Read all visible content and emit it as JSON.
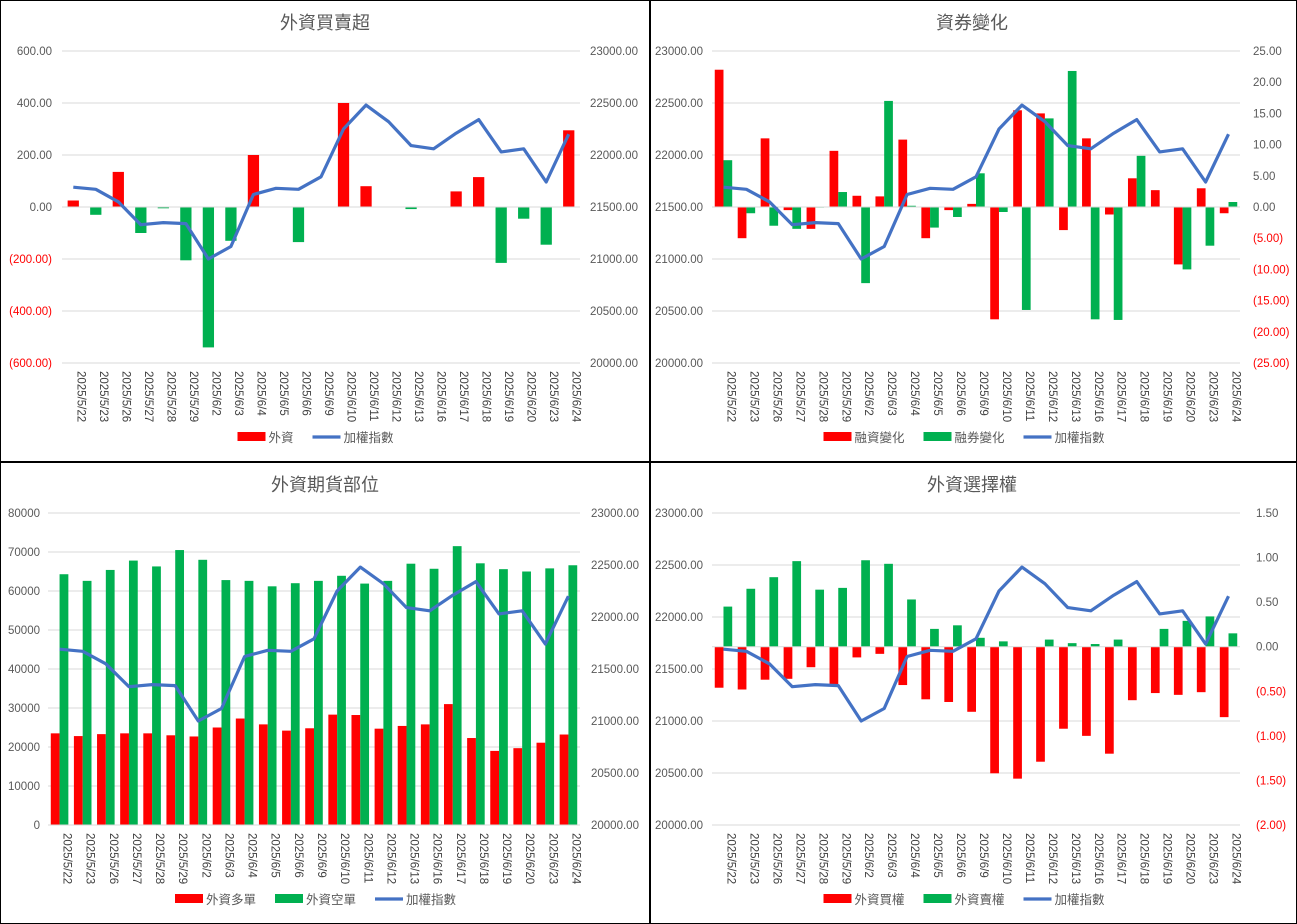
{
  "dates": [
    "2025/5/22",
    "2025/5/23",
    "2025/5/26",
    "2025/5/27",
    "2025/5/28",
    "2025/5/29",
    "2025/6/2",
    "2025/6/3",
    "2025/6/4",
    "2025/6/5",
    "2025/6/6",
    "2025/6/9",
    "2025/6/10",
    "2025/6/11",
    "2025/6/12",
    "2025/6/13",
    "2025/6/16",
    "2025/6/17",
    "2025/6/18",
    "2025/6/19",
    "2025/6/20",
    "2025/6/23",
    "2025/6/24"
  ],
  "colors": {
    "red": "#ff0000",
    "green": "#00b050",
    "blue": "#4472c4",
    "negative_tick": "#ff0000",
    "text": "#595959",
    "grid": "#d9d9d9"
  },
  "chart_data": [
    {
      "type": "bar",
      "title": "外資買賣超",
      "categories_ref": "dates",
      "ylim": [
        -600,
        600
      ],
      "y2lim": [
        20000,
        23000
      ],
      "left_ticks": [
        "600.00",
        "400.00",
        "200.00",
        "0.00",
        "(200.00)",
        "(400.00)",
        "(600.00)"
      ],
      "right_ticks": [
        "23000.00",
        "22500.00",
        "22000.00",
        "21500.00",
        "21000.00",
        "20500.00",
        "20000.00"
      ],
      "legend": [
        "外資",
        "加權指數"
      ],
      "legend_position": "bottom",
      "grid": true,
      "series": [
        {
          "name": "外資",
          "kind": "bar-signed",
          "pos_color": "red",
          "neg_color": "green",
          "values": [
            25,
            -30,
            135,
            -100,
            -5,
            -205,
            -540,
            -130,
            200,
            0,
            -135,
            0,
            400,
            80,
            0,
            -8,
            0,
            60,
            115,
            -215,
            -45,
            -145,
            295
          ]
        },
        {
          "name": "加權指數",
          "kind": "line",
          "axis": "right",
          "values": [
            21690,
            21670,
            21550,
            21330,
            21350,
            21340,
            21000,
            21120,
            21620,
            21680,
            21670,
            21790,
            22250,
            22480,
            22320,
            22090,
            22060,
            22210,
            22340,
            22030,
            22060,
            21740,
            22200
          ]
        }
      ]
    },
    {
      "type": "bar",
      "title": "資券變化",
      "categories_ref": "dates",
      "ylim": [
        -25,
        25
      ],
      "y2lim": [
        20000,
        23000
      ],
      "left_ticks": [
        "23000.00",
        "22500.00",
        "22000.00",
        "21500.00",
        "21000.00",
        "20500.00",
        "20000.00"
      ],
      "right_ticks": [
        "25.00",
        "20.00",
        "15.00",
        "10.00",
        "5.00",
        "0.00",
        "(5.00)",
        "(10.00)",
        "(15.00)",
        "(20.00)",
        "(25.00)"
      ],
      "legend": [
        "融資變化",
        "融券變化",
        "加權指數"
      ],
      "legend_position": "bottom",
      "grid": true,
      "series": [
        {
          "name": "融資變化",
          "kind": "bar",
          "color": "red",
          "values": [
            22,
            -5,
            11,
            -0.5,
            -3.5,
            9,
            1.8,
            1.7,
            10.8,
            -5,
            -0.5,
            0.5,
            -18,
            15.5,
            15,
            -3.7,
            11,
            -1.2,
            4.6,
            2.7,
            -9.2,
            3,
            -1
          ]
        },
        {
          "name": "融券變化",
          "kind": "bar",
          "color": "green",
          "values": [
            7.5,
            -1,
            -3,
            -3.5,
            -0.1,
            2.4,
            -12.2,
            17,
            0.2,
            -3.3,
            -1.6,
            5.4,
            -0.8,
            -16.5,
            14.2,
            21.8,
            -18,
            -18.1,
            8.2,
            0,
            -10,
            -6.2,
            0.8
          ]
        },
        {
          "name": "加權指數",
          "kind": "line",
          "axis": "left",
          "values": [
            21690,
            21670,
            21550,
            21330,
            21350,
            21340,
            21000,
            21120,
            21620,
            21680,
            21670,
            21790,
            22250,
            22480,
            22320,
            22090,
            22060,
            22210,
            22340,
            22030,
            22060,
            21740,
            22200
          ]
        }
      ]
    },
    {
      "type": "bar",
      "title": "外資期貨部位",
      "categories_ref": "dates",
      "ylim": [
        0,
        80000
      ],
      "y2lim": [
        20000,
        23000
      ],
      "left_ticks": [
        "80000",
        "70000",
        "60000",
        "50000",
        "40000",
        "30000",
        "20000",
        "10000",
        "0"
      ],
      "right_ticks": [
        "23000.00",
        "22500.00",
        "22000.00",
        "21500.00",
        "21000.00",
        "20500.00",
        "20000.00"
      ],
      "legend": [
        "外資多單",
        "外資空單",
        "加權指數"
      ],
      "legend_position": "bottom",
      "grid": true,
      "series": [
        {
          "name": "外資多單",
          "kind": "bar",
          "color": "red",
          "values": [
            23500,
            22800,
            23300,
            23500,
            23500,
            23000,
            22700,
            25000,
            27300,
            25800,
            24200,
            24800,
            28300,
            28200,
            24700,
            25400,
            25800,
            31000,
            22300,
            19000,
            19700,
            21100,
            23200
          ]
        },
        {
          "name": "外資空單",
          "kind": "bar",
          "color": "green",
          "values": [
            64300,
            62600,
            65400,
            67800,
            66300,
            70500,
            68000,
            62800,
            62600,
            61200,
            62000,
            62600,
            63900,
            61900,
            62600,
            67000,
            65700,
            71500,
            67100,
            65600,
            65000,
            65800,
            66600
          ]
        },
        {
          "name": "加權指數",
          "kind": "line",
          "axis": "right",
          "values": [
            21690,
            21670,
            21550,
            21330,
            21350,
            21340,
            21000,
            21120,
            21620,
            21680,
            21670,
            21790,
            22250,
            22480,
            22320,
            22090,
            22060,
            22210,
            22340,
            22030,
            22060,
            21740,
            22200
          ]
        }
      ]
    },
    {
      "type": "bar",
      "title": "外資選擇權",
      "categories_ref": "dates",
      "ylim": [
        -2,
        1.5
      ],
      "y2lim": [
        20000,
        23000
      ],
      "left_ticks": [
        "23000.00",
        "22500.00",
        "22000.00",
        "21500.00",
        "21000.00",
        "20500.00",
        "20000.00"
      ],
      "right_ticks": [
        "1.50",
        "1.00",
        "0.50",
        "0.00",
        "(0.50)",
        "(1.00)",
        "(1.50)",
        "(2.00)"
      ],
      "legend": [
        "外資買權",
        "外資賣權",
        "加權指數"
      ],
      "legend_position": "bottom",
      "grid": true,
      "series": [
        {
          "name": "外資買權",
          "kind": "bar",
          "color": "red",
          "values": [
            -0.46,
            -0.48,
            -0.37,
            -0.36,
            -0.23,
            -0.43,
            -0.12,
            -0.08,
            -0.43,
            -0.59,
            -0.62,
            -0.73,
            -1.42,
            -1.48,
            -1.29,
            -0.92,
            -1.0,
            -1.2,
            -0.6,
            -0.52,
            -0.54,
            -0.51,
            -0.79
          ]
        },
        {
          "name": "外資賣權",
          "kind": "bar",
          "color": "green",
          "values": [
            0.45,
            0.65,
            0.78,
            0.96,
            0.64,
            0.66,
            0.97,
            0.93,
            0.53,
            0.2,
            0.24,
            0.1,
            0.06,
            0,
            0.08,
            0.04,
            0.03,
            0.08,
            0,
            0.2,
            0.29,
            0.34,
            0.15
          ]
        },
        {
          "name": "加權指數",
          "kind": "line",
          "axis": "left",
          "values": [
            21690,
            21670,
            21550,
            21330,
            21350,
            21340,
            21000,
            21120,
            21620,
            21680,
            21670,
            21790,
            22250,
            22480,
            22320,
            22090,
            22060,
            22210,
            22340,
            22030,
            22060,
            21740,
            22200
          ]
        }
      ]
    }
  ]
}
